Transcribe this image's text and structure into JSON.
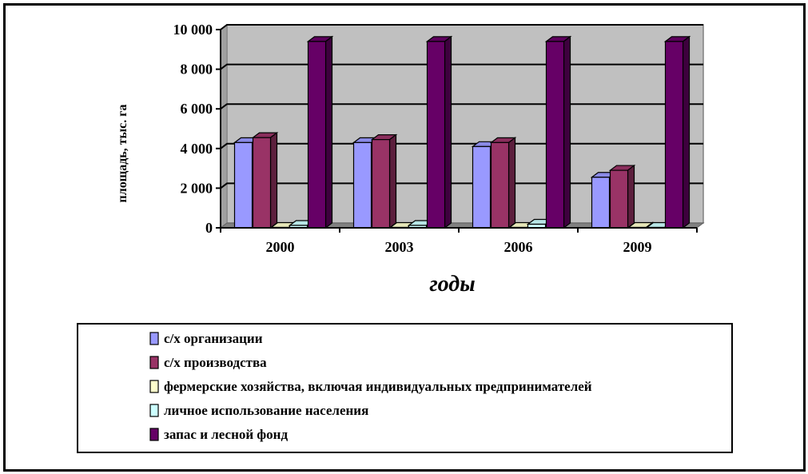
{
  "chart_data": {
    "type": "bar",
    "categories": [
      "2000",
      "2003",
      "2006",
      "2009"
    ],
    "series": [
      {
        "name": "с/х организации",
        "values": [
          4300,
          4300,
          4100,
          2550
        ]
      },
      {
        "name": "с/х производства",
        "values": [
          4550,
          4450,
          4300,
          2900
        ]
      },
      {
        "name": "фермерские хозяйства, включая индивидуальных предпринимателей",
        "values": [
          20,
          20,
          20,
          20
        ]
      },
      {
        "name": "личное использование населения",
        "values": [
          120,
          120,
          180,
          20
        ]
      },
      {
        "name": "запас и лесной фонд",
        "values": [
          9400,
          9400,
          9400,
          9400
        ]
      }
    ],
    "xlabel": "годы",
    "ylabel": "площадь, тыс. га",
    "ylim": [
      0,
      10000
    ],
    "yticks": [
      0,
      2000,
      4000,
      6000,
      8000,
      10000
    ],
    "ytick_labels": [
      "0",
      "2 000",
      "4 000",
      "6 000",
      "8 000",
      "10 000"
    ],
    "grid": true,
    "legend_position": "bottom",
    "colors": [
      "#9999ff",
      "#993366",
      "#ffffcc",
      "#ccffff",
      "#660066"
    ],
    "wall_color": "#c0c0c0"
  }
}
